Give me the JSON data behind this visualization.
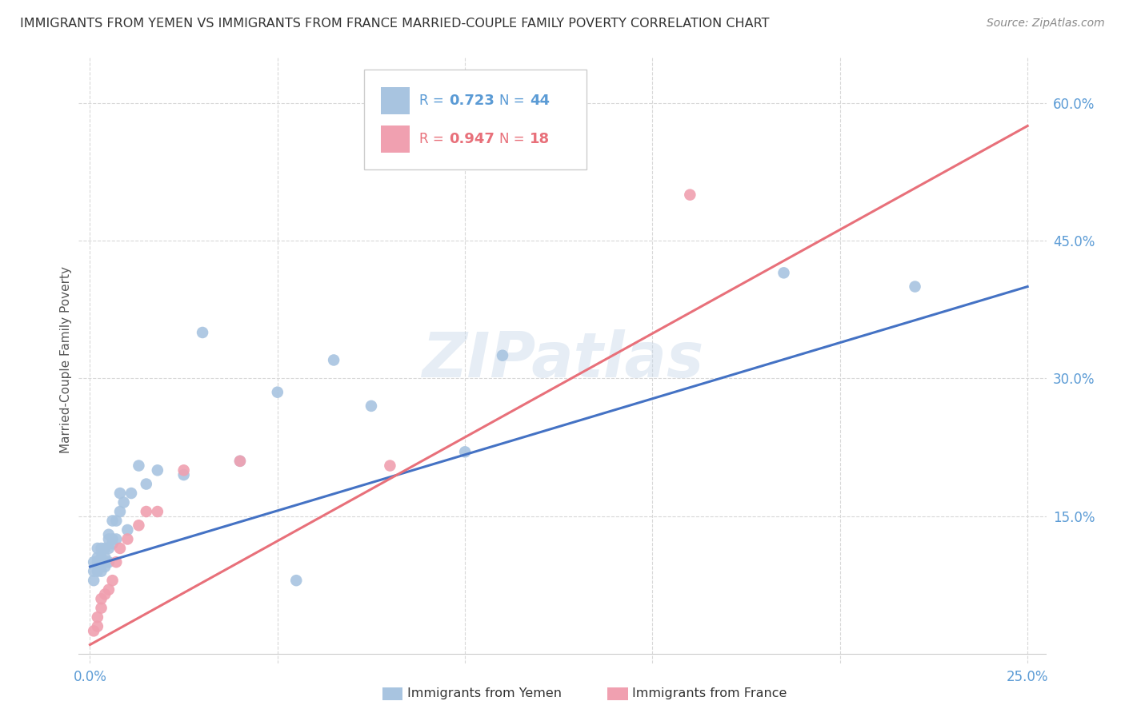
{
  "title": "IMMIGRANTS FROM YEMEN VS IMMIGRANTS FROM FRANCE MARRIED-COUPLE FAMILY POVERTY CORRELATION CHART",
  "source": "Source: ZipAtlas.com",
  "ylabel": "Married-Couple Family Poverty",
  "xlim": [
    -0.003,
    0.255
  ],
  "ylim": [
    -0.01,
    0.65
  ],
  "xticks": [
    0.0,
    0.05,
    0.1,
    0.15,
    0.2,
    0.25
  ],
  "yticks": [
    0.15,
    0.3,
    0.45,
    0.6
  ],
  "ytick_labels": [
    "15.0%",
    "30.0%",
    "45.0%",
    "60.0%"
  ],
  "xtick_labels": [
    "0.0%",
    "",
    "",
    "",
    "",
    "25.0%"
  ],
  "watermark": "ZIPatlas",
  "yemen_R": "0.723",
  "yemen_N": "44",
  "france_R": "0.947",
  "france_N": "18",
  "yemen_scatter_x": [
    0.001,
    0.001,
    0.001,
    0.002,
    0.002,
    0.002,
    0.002,
    0.003,
    0.003,
    0.003,
    0.003,
    0.003,
    0.004,
    0.004,
    0.004,
    0.004,
    0.005,
    0.005,
    0.005,
    0.005,
    0.006,
    0.006,
    0.006,
    0.007,
    0.007,
    0.008,
    0.008,
    0.009,
    0.01,
    0.011,
    0.013,
    0.015,
    0.018,
    0.025,
    0.03,
    0.04,
    0.05,
    0.055,
    0.065,
    0.075,
    0.1,
    0.11,
    0.185,
    0.22
  ],
  "yemen_scatter_y": [
    0.08,
    0.09,
    0.1,
    0.09,
    0.1,
    0.105,
    0.115,
    0.09,
    0.1,
    0.1,
    0.105,
    0.115,
    0.095,
    0.1,
    0.105,
    0.115,
    0.1,
    0.115,
    0.125,
    0.13,
    0.12,
    0.125,
    0.145,
    0.125,
    0.145,
    0.155,
    0.175,
    0.165,
    0.135,
    0.175,
    0.205,
    0.185,
    0.2,
    0.195,
    0.35,
    0.21,
    0.285,
    0.08,
    0.32,
    0.27,
    0.22,
    0.325,
    0.415,
    0.4
  ],
  "france_scatter_x": [
    0.001,
    0.002,
    0.002,
    0.003,
    0.003,
    0.004,
    0.005,
    0.006,
    0.007,
    0.008,
    0.01,
    0.013,
    0.015,
    0.018,
    0.025,
    0.04,
    0.08,
    0.16
  ],
  "france_scatter_y": [
    0.025,
    0.03,
    0.04,
    0.05,
    0.06,
    0.065,
    0.07,
    0.08,
    0.1,
    0.115,
    0.125,
    0.14,
    0.155,
    0.155,
    0.2,
    0.21,
    0.205,
    0.5
  ],
  "yemen_line_x": [
    0.0,
    0.25
  ],
  "yemen_line_y": [
    0.095,
    0.4
  ],
  "france_line_x": [
    0.0,
    0.25
  ],
  "france_line_y": [
    0.01,
    0.575
  ],
  "yemen_line_color": "#4472c4",
  "france_line_color": "#e8707a",
  "yemen_scatter_color": "#a8c4e0",
  "france_scatter_color": "#f0a0b0",
  "axis_tick_color": "#5b9bd5",
  "grid_color": "#d8d8d8",
  "title_color": "#333333",
  "source_color": "#888888",
  "ylabel_color": "#555555"
}
